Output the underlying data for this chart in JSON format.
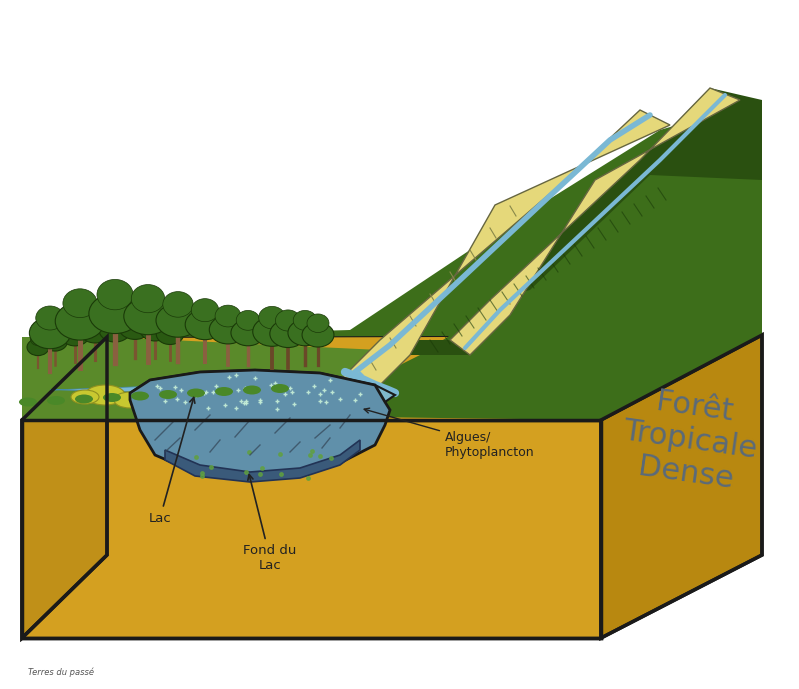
{
  "bg_color": "#ffffff",
  "sand_color": "#d4a020",
  "sand_dark": "#b88810",
  "green_light": "#5a8a2a",
  "green_mid": "#3d6e1a",
  "green_dark": "#2a5010",
  "yellow_stripe": "#e5d87a",
  "river_blue": "#7ab8d4",
  "lake_light": "#7fb8cc",
  "lake_mid": "#6090aa",
  "lake_deep": "#3a5a7a",
  "outline": "#1a1a1a",
  "text_title": "#5a6a7a",
  "text_label": "#222222",
  "title_text": "Forêt\nTropicale\nDense",
  "label_lac": "Lac",
  "label_fond_lac": "Fond du\nLac",
  "label_algues": "Algues/\nPhytoplancton",
  "title_fontsize": 22,
  "label_fontsize": 9.5
}
